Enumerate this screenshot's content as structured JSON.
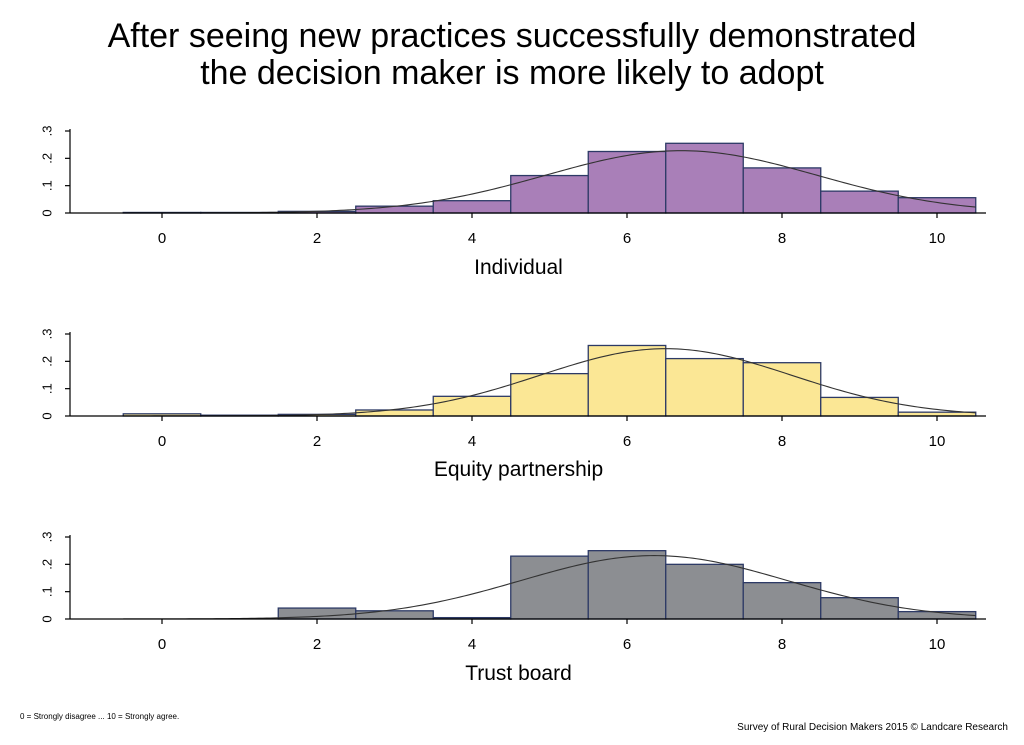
{
  "title_line1": "After seeing new practices successfully demonstrated",
  "title_line2": "the decision maker is more likely to adopt",
  "footnote_left": "0 = Strongly disagree ... 10 = Strongly agree.",
  "footnote_right": "Survey of Rural Decision Makers 2015 © Landcare Research",
  "chart_data": [
    {
      "type": "bar",
      "xlabel": "Individual",
      "ylabel": "",
      "xlim": [
        -1,
        10.5
      ],
      "ylim": [
        0,
        0.3
      ],
      "xticks": [
        0,
        2,
        4,
        6,
        8,
        10
      ],
      "yticks": [
        0,
        0.1,
        0.2,
        0.3
      ],
      "ytick_labels": [
        "0",
        ".1",
        ".2",
        ".3"
      ],
      "bar_color": "#a97fb8",
      "categories": [
        0,
        1,
        2,
        3,
        4,
        5,
        6,
        7,
        8,
        9,
        10
      ],
      "values": [
        0.002,
        0.002,
        0.006,
        0.025,
        0.045,
        0.137,
        0.225,
        0.255,
        0.165,
        0.08,
        0.056
      ],
      "normal_curve": {
        "mean": 6.7,
        "sd": 1.75
      }
    },
    {
      "type": "bar",
      "xlabel": "Equity partnership",
      "ylabel": "",
      "xlim": [
        -1,
        10.5
      ],
      "ylim": [
        0,
        0.3
      ],
      "xticks": [
        0,
        2,
        4,
        6,
        8,
        10
      ],
      "yticks": [
        0,
        0.1,
        0.2,
        0.3
      ],
      "ytick_labels": [
        "0",
        ".1",
        ".2",
        ".3"
      ],
      "bar_color": "#fbe795",
      "categories": [
        0,
        1,
        2,
        3,
        4,
        5,
        6,
        7,
        8,
        9,
        10
      ],
      "values": [
        0.008,
        0.003,
        0.006,
        0.022,
        0.072,
        0.155,
        0.258,
        0.21,
        0.195,
        0.068,
        0.014
      ],
      "normal_curve": {
        "mean": 6.5,
        "sd": 1.62
      }
    },
    {
      "type": "bar",
      "xlabel": "Trust board",
      "ylabel": "",
      "xlim": [
        -1,
        10.5
      ],
      "ylim": [
        0,
        0.3
      ],
      "xticks": [
        0,
        2,
        4,
        6,
        8,
        10
      ],
      "yticks": [
        0,
        0.1,
        0.2,
        0.3
      ],
      "ytick_labels": [
        "0",
        ".1",
        ".2",
        ".3"
      ],
      "bar_color": "#8c8e92",
      "categories": [
        2,
        3,
        4,
        5,
        6,
        7,
        8,
        9,
        10
      ],
      "values": [
        0.04,
        0.03,
        0.005,
        0.23,
        0.25,
        0.2,
        0.133,
        0.078,
        0.027
      ],
      "normal_curve": {
        "mean": 6.35,
        "sd": 1.72
      }
    }
  ]
}
